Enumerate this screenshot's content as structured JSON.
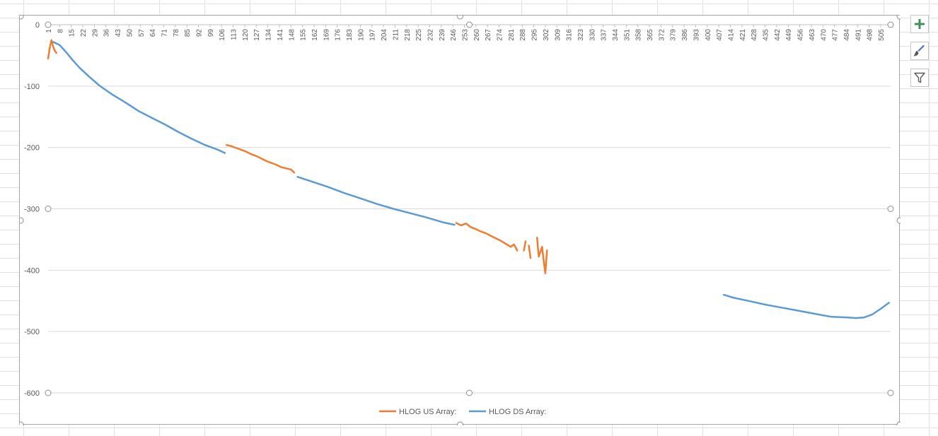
{
  "chart_data": {
    "type": "line",
    "title": "",
    "xlabel": "",
    "ylabel": "",
    "ylim": [
      -600,
      0
    ],
    "yticks": [
      0,
      -100,
      -200,
      -300,
      -400,
      -500,
      -600
    ],
    "x_axis_position": "top",
    "xlim": [
      1,
      511
    ],
    "xtick_labels": [
      1,
      8,
      15,
      22,
      29,
      36,
      43,
      50,
      57,
      64,
      71,
      78,
      85,
      92,
      99,
      106,
      113,
      120,
      127,
      134,
      141,
      148,
      155,
      162,
      169,
      176,
      183,
      190,
      197,
      204,
      211,
      218,
      225,
      232,
      239,
      246,
      253,
      260,
      267,
      274,
      281,
      288,
      295,
      302,
      309,
      316,
      323,
      330,
      337,
      344,
      351,
      358,
      365,
      372,
      379,
      386,
      393,
      400,
      407,
      414,
      421,
      428,
      435,
      442,
      449,
      456,
      463,
      470,
      477,
      484,
      491,
      498,
      505
    ],
    "grid": "horizontal",
    "legend_position": "bottom",
    "series": [
      {
        "name": "HLOG US Array:",
        "color": "#ED7D31",
        "segments": [
          [
            [
              1,
              -55
            ],
            [
              2,
              -38
            ],
            [
              3,
              -25
            ],
            [
              4,
              -35
            ],
            [
              5,
              -42
            ],
            [
              6,
              -46
            ]
          ],
          [
            [
              109,
              -196
            ],
            [
              112,
              -198
            ],
            [
              115,
              -201
            ],
            [
              118,
              -204
            ],
            [
              121,
              -207
            ],
            [
              124,
              -211
            ],
            [
              127,
              -214
            ],
            [
              130,
              -218
            ],
            [
              133,
              -222
            ],
            [
              136,
              -225
            ],
            [
              139,
              -228
            ],
            [
              142,
              -232
            ],
            [
              145,
              -234
            ],
            [
              148,
              -236
            ],
            [
              150,
              -241
            ]
          ],
          [
            [
              248,
              -323
            ],
            [
              251,
              -327
            ],
            [
              254,
              -324
            ],
            [
              257,
              -330
            ],
            [
              260,
              -333
            ],
            [
              263,
              -337
            ],
            [
              266,
              -340
            ],
            [
              269,
              -344
            ],
            [
              272,
              -348
            ],
            [
              275,
              -352
            ],
            [
              278,
              -357
            ],
            [
              281,
              -362
            ],
            [
              283,
              -358
            ],
            [
              285,
              -368
            ]
          ],
          [
            [
              289,
              -368
            ],
            [
              290,
              -353
            ]
          ],
          [
            [
              292,
              -360
            ],
            [
              293,
              -380
            ]
          ],
          [
            [
              297,
              -347
            ],
            [
              298,
              -378
            ],
            [
              300,
              -362
            ],
            [
              301,
              -385
            ],
            [
              302,
              -405
            ],
            [
              303,
              -368
            ]
          ]
        ]
      },
      {
        "name": "HLOG DS Array:",
        "color": "#5B9BD5",
        "segments": [
          [
            [
              4,
              -28
            ],
            [
              8,
              -33
            ],
            [
              12,
              -45
            ],
            [
              16,
              -58
            ],
            [
              20,
              -70
            ],
            [
              26,
              -85
            ],
            [
              32,
              -99
            ],
            [
              40,
              -114
            ],
            [
              48,
              -127
            ],
            [
              56,
              -141
            ],
            [
              64,
              -152
            ],
            [
              72,
              -163
            ],
            [
              80,
              -175
            ],
            [
              88,
              -186
            ],
            [
              96,
              -196
            ],
            [
              104,
              -204
            ],
            [
              108,
              -209
            ]
          ],
          [
            [
              152,
              -248
            ],
            [
              160,
              -255
            ],
            [
              170,
              -264
            ],
            [
              180,
              -274
            ],
            [
              190,
              -283
            ],
            [
              200,
              -292
            ],
            [
              210,
              -300
            ],
            [
              220,
              -307
            ],
            [
              230,
              -314
            ],
            [
              240,
              -322
            ],
            [
              247,
              -326
            ]
          ],
          [
            [
              410,
              -440
            ],
            [
              416,
              -445
            ],
            [
              425,
              -450
            ],
            [
              435,
              -456
            ],
            [
              445,
              -461
            ],
            [
              455,
              -466
            ],
            [
              465,
              -471
            ],
            [
              475,
              -476
            ],
            [
              485,
              -477
            ],
            [
              490,
              -478
            ],
            [
              495,
              -477
            ],
            [
              500,
              -472
            ],
            [
              505,
              -463
            ],
            [
              510,
              -453
            ]
          ]
        ]
      }
    ]
  }
}
